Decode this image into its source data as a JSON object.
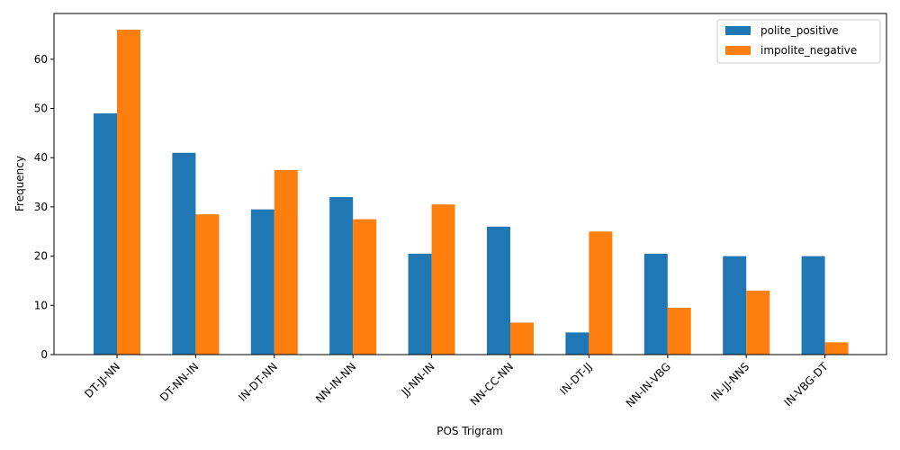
{
  "chart_data": {
    "type": "bar",
    "title": "",
    "xlabel": "POS Trigram",
    "ylabel": "Frequency",
    "ylim": [
      0,
      69.3
    ],
    "yticks": [
      0,
      10,
      20,
      30,
      40,
      50,
      60
    ],
    "categories": [
      "DT-JJ-NN",
      "DT-NN-IN",
      "IN-DT-NN",
      "NN-IN-NN",
      "JJ-NN-IN",
      "NN-CC-NN",
      "IN-DT-JJ",
      "NN-IN-VBG",
      "IN-JJ-NNS",
      "IN-VBG-DT"
    ],
    "series": [
      {
        "name": "polite_positive",
        "color": "#1f77b4",
        "values": [
          49,
          41,
          29.5,
          32,
          20.5,
          26,
          4.5,
          20.5,
          20,
          20
        ]
      },
      {
        "name": "impolite_negative",
        "color": "#ff7f0e",
        "values": [
          66,
          28.5,
          37.5,
          27.5,
          30.5,
          6.5,
          25,
          9.5,
          13,
          2.5
        ]
      }
    ],
    "legend_position": "top-right",
    "grid": false
  }
}
